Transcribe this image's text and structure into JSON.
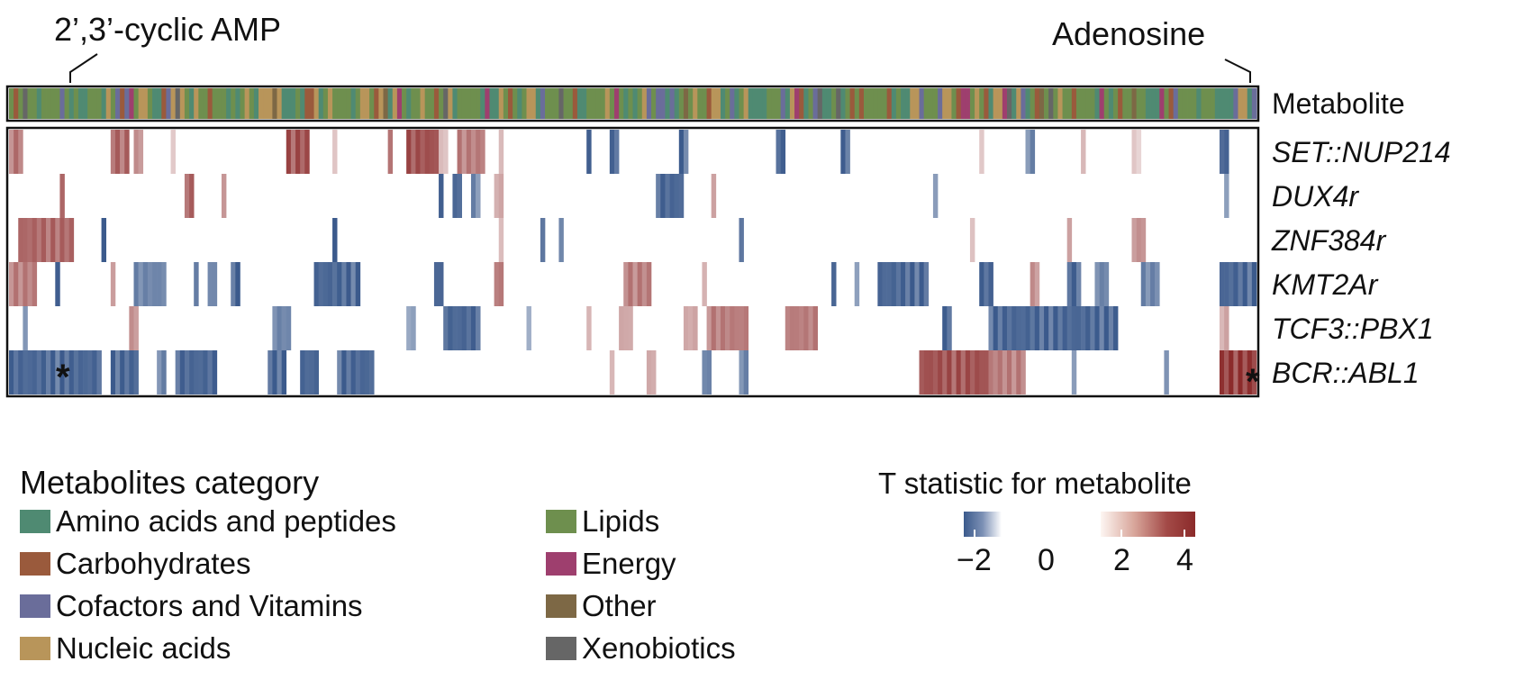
{
  "chart_data": {
    "type": "heatmap",
    "annotations": {
      "left_metabolite": "2’,3’-cyclic AMP",
      "right_metabolite": "Adenosine",
      "marker": "*"
    },
    "annotation_row_label": "Metabolite",
    "rows": [
      "SET::NUP214",
      "DUX4r",
      "ZNF384r",
      "KMT2Ar",
      "TCF3::PBX1",
      "BCR::ABL1"
    ],
    "n_metabolites": 270,
    "category_legend": {
      "title": "Metabolites category",
      "items": [
        {
          "name": "Amino acids and peptides",
          "color": "#4f8a72"
        },
        {
          "name": "Carbohydrates",
          "color": "#9a5a3c"
        },
        {
          "name": "Cofactors and Vitamins",
          "color": "#6a6d9a"
        },
        {
          "name": "Nucleic acids",
          "color": "#b8955a"
        },
        {
          "name": "Lipids",
          "color": "#6e8f4e"
        },
        {
          "name": "Energy",
          "color": "#9e3f6e"
        },
        {
          "name": "Other",
          "color": "#7d6845"
        },
        {
          "name": "Xenobiotics",
          "color": "#666666"
        }
      ]
    },
    "colorbar": {
      "title": "T statistic for metabolite",
      "ticks": [
        "−2",
        "0",
        "2",
        "4"
      ],
      "range": [
        -2.5,
        4.5
      ],
      "low_color": "#3b5a8c",
      "high_color": "#8b2a2a"
    },
    "blocks": [
      [
        [
          0,
          0,
          3,
          3.2
        ],
        [
          1,
          22,
          26,
          3.5
        ],
        [
          2,
          27,
          29,
          2.5
        ],
        [
          3,
          35,
          36,
          1.5
        ],
        [
          4,
          60,
          65,
          4
        ],
        [
          5,
          70,
          71,
          1.5
        ],
        [
          6,
          82,
          83,
          3
        ],
        [
          7,
          86,
          93,
          4
        ],
        [
          8,
          93,
          95,
          1.5
        ],
        [
          9,
          97,
          103,
          3
        ],
        [
          10,
          106,
          107,
          1.5
        ],
        [
          11,
          125,
          126,
          -2.5
        ],
        [
          12,
          130,
          132,
          -2.5
        ],
        [
          13,
          145,
          147,
          -2.5
        ],
        [
          14,
          166,
          168,
          -2.5
        ],
        [
          15,
          180,
          182,
          -2.5
        ],
        [
          16,
          210,
          211,
          1.2
        ],
        [
          17,
          220,
          222,
          -2
        ],
        [
          18,
          232,
          233,
          1.5
        ],
        [
          19,
          243,
          245,
          1.2
        ],
        [
          20,
          262,
          264,
          -2.5
        ]
      ],
      [
        [
          0,
          11,
          12,
          3.5
        ],
        [
          1,
          38,
          40,
          3.5
        ],
        [
          2,
          46,
          47,
          2.5
        ],
        [
          3,
          93,
          94,
          -2.5
        ],
        [
          4,
          96,
          98,
          -2.5
        ],
        [
          5,
          100,
          102,
          -2
        ],
        [
          6,
          105,
          107,
          2
        ],
        [
          7,
          140,
          146,
          -2.5
        ],
        [
          8,
          152,
          153,
          2
        ],
        [
          9,
          200,
          201,
          -1.5
        ],
        [
          10,
          263,
          264,
          -1.5
        ]
      ],
      [
        [
          0,
          2,
          14,
          3.5
        ],
        [
          1,
          20,
          21,
          -2.5
        ],
        [
          2,
          70,
          71,
          -2.5
        ],
        [
          3,
          106,
          107,
          2
        ],
        [
          4,
          115,
          116,
          -2.5
        ],
        [
          5,
          119,
          120,
          -2.5
        ],
        [
          6,
          158,
          159,
          -2.5
        ],
        [
          7,
          208,
          209,
          1.5
        ],
        [
          8,
          229,
          230,
          2
        ],
        [
          9,
          243,
          246,
          2.5
        ]
      ],
      [
        [
          0,
          0,
          6,
          3
        ],
        [
          1,
          10,
          11,
          -2.5
        ],
        [
          2,
          22,
          23,
          2.5
        ],
        [
          3,
          27,
          34,
          -2
        ],
        [
          4,
          40,
          41,
          -2
        ],
        [
          5,
          43,
          45,
          -2
        ],
        [
          6,
          48,
          50,
          -2.5
        ],
        [
          7,
          66,
          76,
          -2.5
        ],
        [
          8,
          92,
          94,
          -2.5
        ],
        [
          9,
          105,
          107,
          3
        ],
        [
          10,
          133,
          139,
          3
        ],
        [
          11,
          150,
          151,
          2
        ],
        [
          12,
          178,
          179,
          -2.5
        ],
        [
          13,
          183,
          184,
          -2
        ],
        [
          14,
          188,
          199,
          -2.5
        ],
        [
          15,
          210,
          213,
          -2.5
        ],
        [
          16,
          221,
          223,
          2.5
        ],
        [
          17,
          229,
          232,
          -2.5
        ],
        [
          18,
          235,
          238,
          -2
        ],
        [
          19,
          245,
          249,
          -2
        ],
        [
          20,
          262,
          270,
          -2.5
        ]
      ],
      [
        [
          0,
          3,
          4,
          -2
        ],
        [
          1,
          26,
          28,
          2.5
        ],
        [
          2,
          57,
          61,
          -2
        ],
        [
          3,
          86,
          88,
          -1.5
        ],
        [
          4,
          94,
          102,
          -2.5
        ],
        [
          5,
          112,
          113,
          -1.5
        ],
        [
          6,
          125,
          126,
          2
        ],
        [
          7,
          132,
          135,
          2
        ],
        [
          8,
          146,
          149,
          2
        ],
        [
          9,
          151,
          160,
          3
        ],
        [
          10,
          168,
          175,
          3
        ],
        [
          11,
          202,
          204,
          -2.5
        ],
        [
          12,
          212,
          240,
          -2.5
        ],
        [
          13,
          262,
          264,
          2
        ]
      ],
      [
        [
          0,
          0,
          20,
          -2.5
        ],
        [
          1,
          22,
          28,
          -2.5
        ],
        [
          2,
          32,
          34,
          -2
        ],
        [
          3,
          36,
          45,
          -2.5
        ],
        [
          4,
          56,
          60,
          -2.5
        ],
        [
          5,
          63,
          67,
          -2.5
        ],
        [
          6,
          71,
          79,
          -2.5
        ],
        [
          7,
          130,
          131,
          2
        ],
        [
          8,
          138,
          140,
          2
        ],
        [
          9,
          150,
          152,
          -2
        ],
        [
          10,
          158,
          160,
          -2
        ],
        [
          11,
          197,
          212,
          4
        ],
        [
          12,
          212,
          220,
          3
        ],
        [
          13,
          230,
          231,
          -2
        ],
        [
          14,
          250,
          251,
          -2
        ],
        [
          15,
          262,
          270,
          4.5
        ]
      ]
    ],
    "category_order": [
      "Amino acids and peptides",
      "Carbohydrates",
      "Cofactors and Vitamins",
      "Nucleic acids",
      "Lipids",
      "Energy",
      "Other",
      "Xenobiotics"
    ]
  }
}
